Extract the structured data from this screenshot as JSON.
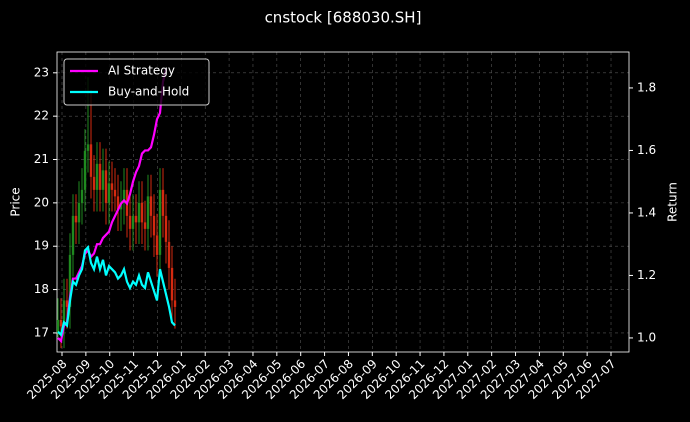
{
  "chart_data": {
    "type": "candlestick",
    "title": "cnstock [688030.SH]",
    "y_label": "Price",
    "y2_label": "Return",
    "categories": [
      null,
      null,
      null,
      null,
      null,
      null,
      null,
      null,
      null,
      null,
      null,
      null,
      null,
      null,
      null,
      null,
      null,
      null,
      null,
      null,
      null,
      null,
      null,
      null,
      null,
      null,
      null,
      null,
      null,
      null,
      null,
      null,
      null,
      null,
      null,
      null,
      null,
      null,
      null,
      null
    ],
    "open": [
      17.0,
      17.3,
      17.15,
      17.75,
      17.6,
      18.8,
      19.7,
      19.55,
      20.0,
      20.3,
      21.2,
      21.35,
      20.6,
      20.3,
      20.9,
      20.3,
      20.75,
      20.0,
      20.45,
      20.3,
      20.15,
      19.85,
      20.0,
      20.3,
      19.7,
      19.4,
      19.7,
      19.55,
      20.0,
      19.55,
      19.4,
      20.15,
      19.7,
      19.25,
      18.8,
      20.3,
      19.7,
      19.1,
      18.5,
      17.75
    ],
    "high": [
      17.8,
      17.8,
      18.25,
      18.25,
      19.3,
      20.2,
      20.2,
      20.5,
      20.8,
      21.7,
      22.9,
      22.6,
      21.1,
      21.4,
      21.4,
      21.25,
      21.25,
      20.95,
      20.95,
      20.8,
      20.65,
      20.5,
      20.8,
      20.8,
      20.2,
      20.2,
      20.2,
      20.5,
      20.5,
      20.05,
      20.65,
      20.65,
      20.2,
      19.75,
      20.8,
      20.8,
      20.2,
      19.6,
      19.0,
      18.25
    ],
    "low": [
      16.9,
      16.65,
      16.65,
      17.1,
      17.1,
      18.3,
      19.05,
      19.05,
      19.5,
      19.8,
      20.7,
      20.1,
      19.8,
      19.8,
      19.8,
      19.8,
      19.5,
      19.5,
      19.8,
      19.8,
      19.35,
      19.35,
      19.5,
      19.2,
      18.9,
      18.9,
      19.05,
      19.05,
      19.05,
      18.9,
      18.9,
      19.2,
      18.75,
      18.3,
      18.3,
      19.2,
      18.6,
      18.0,
      17.25,
      17.1
    ],
    "close": [
      17.3,
      17.15,
      17.75,
      17.6,
      18.8,
      19.7,
      19.55,
      20.0,
      20.3,
      21.2,
      21.35,
      20.6,
      20.3,
      20.9,
      20.3,
      20.75,
      20.0,
      20.45,
      20.3,
      20.15,
      19.85,
      20.0,
      20.3,
      19.7,
      19.4,
      19.7,
      19.55,
      20.0,
      19.55,
      19.4,
      20.15,
      19.7,
      19.25,
      18.8,
      20.3,
      19.7,
      19.1,
      18.5,
      17.75,
      17.6
    ],
    "up_color": "#1f8a1f",
    "down_color": "#d42a10",
    "series": [
      {
        "name": "AI Strategy",
        "color": "#ff00ff",
        "axis": "y2",
        "values": [
          1.0,
          0.99,
          1.04,
          1.05,
          1.13,
          1.19,
          1.19,
          1.21,
          1.23,
          1.27,
          1.28,
          1.26,
          1.27,
          1.3,
          1.3,
          1.32,
          1.33,
          1.34,
          1.37,
          1.39,
          1.41,
          1.43,
          1.44,
          1.43,
          1.46,
          1.5,
          1.53,
          1.55,
          1.59,
          1.6,
          1.6,
          1.61,
          1.65,
          1.7,
          1.72,
          1.82,
          1.86,
          null,
          null,
          null
        ]
      },
      {
        "name": "Buy-and-Hold",
        "color": "#00ffff",
        "axis": "y2",
        "values": [
          1.02,
          1.01,
          1.05,
          1.04,
          1.12,
          1.18,
          1.17,
          1.2,
          1.22,
          1.28,
          1.29,
          1.24,
          1.22,
          1.26,
          1.22,
          1.25,
          1.2,
          1.23,
          1.22,
          1.21,
          1.19,
          1.2,
          1.22,
          1.18,
          1.16,
          1.18,
          1.17,
          1.2,
          1.17,
          1.16,
          1.21,
          1.18,
          1.15,
          1.12,
          1.22,
          1.18,
          1.14,
          1.1,
          1.05,
          1.04
        ]
      }
    ],
    "ylim": [
      16.56,
      23.48
    ],
    "yticks": [
      17,
      18,
      19,
      20,
      21,
      22,
      23
    ],
    "y2lim": [
      0.955,
      1.915
    ],
    "y2ticks": [
      {
        "value": 1.0,
        "label": "1.0"
      },
      1.2,
      1.4,
      1.6,
      1.8
    ],
    "xticks": [
      "2025-08",
      "2025-09",
      "2025-10",
      "2025-11",
      "2025-12",
      "2026-01",
      "2026-02",
      "2026-03",
      "2026-04",
      "2026-05",
      "2026-06",
      "2026-07",
      "2026-08",
      "2026-09",
      "2026-10",
      "2026-11",
      "2026-12",
      "2027-01",
      "2027-02",
      "2027-03",
      "2027-04",
      "2027-05",
      "2027-06",
      "2027-07"
    ],
    "grid": true,
    "legend": "upper left"
  }
}
